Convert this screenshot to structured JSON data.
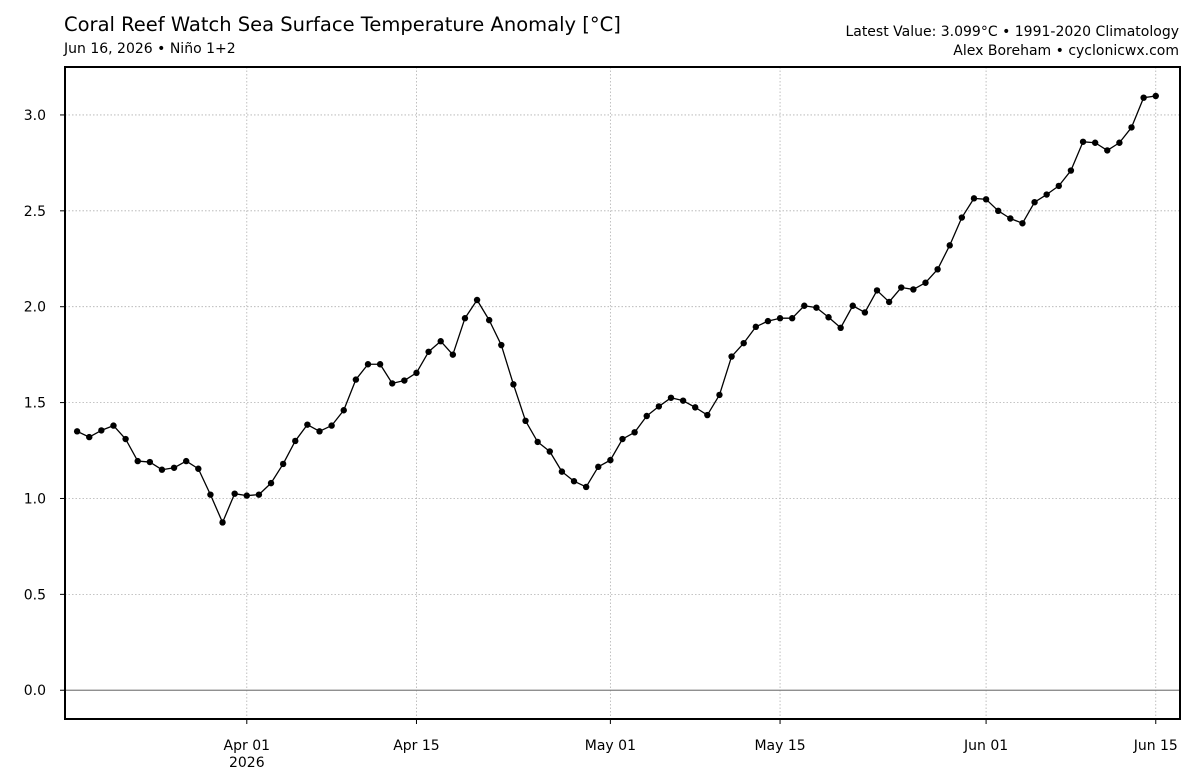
{
  "header": {
    "title": "Coral Reef Watch Sea Surface Temperature Anomaly [°C]",
    "subtitle": "Jun 16, 2026 • Niño 1+2",
    "latest": "Latest Value: 3.099°C • 1991-2020 Climatology",
    "credit": "Alex Boreham • cyclonicwx.com"
  },
  "chart_data": {
    "type": "line",
    "title": "Coral Reef Watch Sea Surface Temperature Anomaly [°C]",
    "subtitle": "Jun 16, 2026 • Niño 1+2",
    "xlabel": "",
    "ylabel": "",
    "x_start": "2026-03-18",
    "x_end": "2026-06-16",
    "xlim": [
      "2026-03-17",
      "2026-06-17"
    ],
    "ylim": [
      -0.15,
      3.25
    ],
    "x_ticks": [
      {
        "date": "2026-04-01",
        "label": "Apr 01",
        "sublabel": "2026"
      },
      {
        "date": "2026-04-15",
        "label": "Apr 15",
        "sublabel": ""
      },
      {
        "date": "2026-05-01",
        "label": "May 01",
        "sublabel": ""
      },
      {
        "date": "2026-05-15",
        "label": "May 15",
        "sublabel": ""
      },
      {
        "date": "2026-06-01",
        "label": "Jun 01",
        "sublabel": ""
      },
      {
        "date": "2026-06-15",
        "label": "Jun 15",
        "sublabel": ""
      }
    ],
    "y_ticks": [
      0.0,
      0.5,
      1.0,
      1.5,
      2.0,
      2.5,
      3.0
    ],
    "y_tick_labels": [
      "0.0",
      "0.5",
      "1.0",
      "1.5",
      "2.0",
      "2.5",
      "3.0"
    ],
    "grid": true,
    "zero_line": true,
    "markers": true,
    "series": [
      {
        "color": "#000000",
        "values": [
          1.35,
          1.32,
          1.355,
          1.38,
          1.31,
          1.195,
          1.19,
          1.15,
          1.16,
          1.195,
          1.155,
          1.02,
          0.875,
          1.025,
          1.015,
          1.02,
          1.08,
          1.18,
          1.3,
          1.385,
          1.35,
          1.38,
          1.46,
          1.62,
          1.7,
          1.7,
          1.6,
          1.615,
          1.655,
          1.765,
          1.82,
          1.75,
          1.94,
          2.035,
          1.93,
          1.8,
          1.595,
          1.405,
          1.295,
          1.245,
          1.14,
          1.09,
          1.06,
          1.165,
          1.2,
          1.31,
          1.345,
          1.43,
          1.48,
          1.525,
          1.51,
          1.475,
          1.435,
          1.54,
          1.74,
          1.81,
          1.895,
          1.925,
          1.94,
          1.94,
          2.005,
          1.995,
          1.945,
          1.89,
          2.005,
          1.97,
          2.085,
          2.025,
          2.1,
          2.09,
          2.125,
          2.195,
          2.32,
          2.465,
          2.565,
          2.56,
          2.5,
          2.46,
          2.435,
          2.545,
          2.585,
          2.63,
          2.71,
          2.86,
          2.855,
          2.815,
          2.855,
          2.935,
          3.09,
          3.099
        ]
      }
    ],
    "colors": {
      "line": "#000000",
      "grid": "#b0b0b0",
      "zero_line": "#808080",
      "frame": "#000000"
    }
  }
}
